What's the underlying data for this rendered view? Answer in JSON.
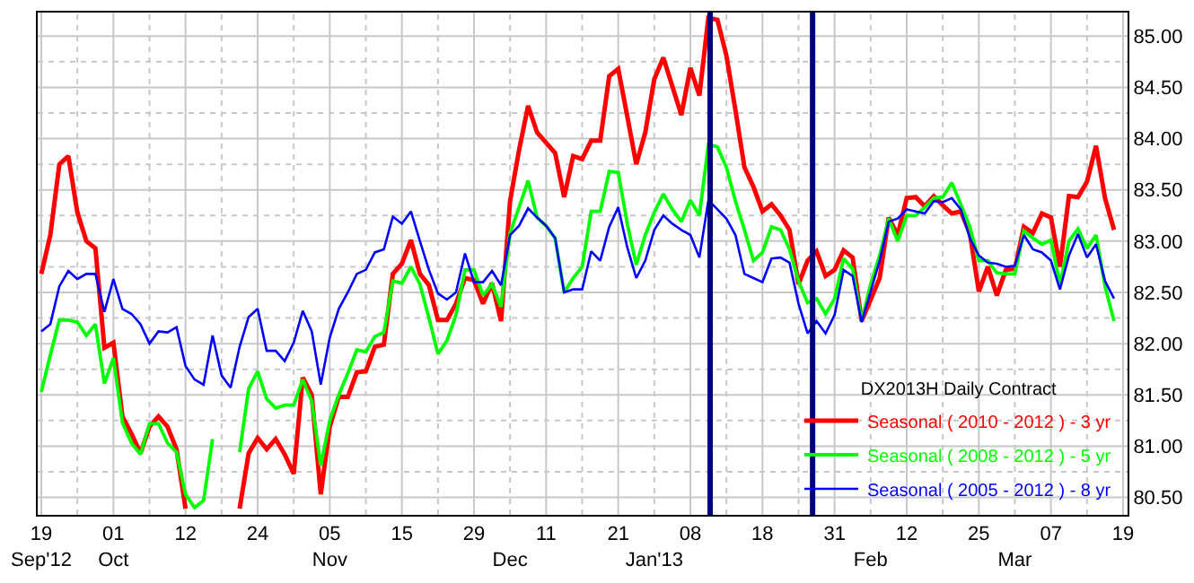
{
  "chart_data": {
    "type": "line",
    "legend_title": "DX2013H Daily Contract",
    "legend": "bottom right",
    "grid": true,
    "line_style": "solid",
    "categories": [
      "19\nSep'12",
      null,
      null,
      null,
      null,
      null,
      null,
      null,
      "01\nOct",
      null,
      null,
      null,
      null,
      null,
      null,
      null,
      "12",
      null,
      null,
      null,
      null,
      null,
      null,
      null,
      "24",
      null,
      null,
      null,
      null,
      null,
      null,
      null,
      "05\nNov",
      null,
      null,
      null,
      null,
      null,
      null,
      null,
      "15",
      null,
      null,
      null,
      null,
      null,
      null,
      null,
      "29",
      null,
      null,
      null,
      "\nDec",
      null,
      null,
      null,
      "11",
      null,
      null,
      null,
      null,
      null,
      null,
      null,
      "21",
      null,
      null,
      null,
      "\nJan'13",
      null,
      null,
      null,
      "08",
      null,
      null,
      null,
      null,
      null,
      null,
      null,
      "18",
      null,
      null,
      null,
      null,
      null,
      null,
      null,
      "31",
      null,
      null,
      null,
      "\nFeb",
      null,
      null,
      null,
      "12",
      null,
      null,
      null,
      null,
      null,
      null,
      null,
      "25",
      null,
      null,
      null,
      "\nMar",
      null,
      null,
      null,
      "07",
      null,
      null,
      null,
      null,
      null,
      null,
      null,
      "19"
    ],
    "ylim": [
      80.33,
      85.23
    ],
    "yticks": [
      {
        "value": 80.5,
        "label": "80.50"
      },
      {
        "value": 80.75,
        "label": null
      },
      {
        "value": 81,
        "label": "81.00"
      },
      {
        "value": 81.25,
        "label": null
      },
      {
        "value": 81.5,
        "label": "81.50"
      },
      {
        "value": 81.75,
        "label": null
      },
      {
        "value": 82,
        "label": "82.00"
      },
      {
        "value": 82.25,
        "label": null
      },
      {
        "value": 82.5,
        "label": "82.50"
      },
      {
        "value": 82.75,
        "label": null
      },
      {
        "value": 83,
        "label": "83.00"
      },
      {
        "value": 83.25,
        "label": null
      },
      {
        "value": 83.5,
        "label": "83.50"
      },
      {
        "value": 83.75,
        "label": null
      },
      {
        "value": 84,
        "label": "84.00"
      },
      {
        "value": 84.25,
        "label": null
      },
      {
        "value": 84.5,
        "label": "84.50"
      },
      {
        "value": 84.75,
        "label": null
      },
      {
        "value": 85,
        "label": "85.00"
      }
    ],
    "series": [
      {
        "name": "Seasonal ( 2010 - 2012 ) - 3 yr",
        "color": "#ff0000",
        "values": [
          82.68,
          83.06,
          83.75,
          83.83,
          83.28,
          83.0,
          82.93,
          81.96,
          82.01,
          81.29,
          81.12,
          80.93,
          81.19,
          81.29,
          81.19,
          80.97,
          80.39,
          null,
          null,
          null,
          null,
          null,
          80.39,
          80.93,
          81.08,
          80.97,
          81.07,
          80.92,
          80.73,
          81.67,
          81.5,
          80.53,
          81.19,
          81.48,
          81.48,
          81.72,
          81.73,
          81.97,
          81.99,
          82.68,
          82.78,
          83.01,
          82.68,
          82.57,
          82.23,
          82.23,
          82.39,
          82.64,
          82.62,
          82.39,
          82.59,
          82.22,
          83.39,
          83.89,
          84.32,
          84.06,
          83.96,
          83.86,
          83.43,
          83.83,
          83.8,
          83.98,
          83.98,
          84.61,
          84.68,
          84.22,
          83.75,
          84.06,
          84.58,
          84.79,
          84.51,
          84.23,
          84.69,
          84.42,
          85.18,
          85.16,
          84.81,
          84.28,
          83.72,
          83.53,
          83.29,
          83.36,
          83.25,
          83.11,
          82.58,
          82.81,
          82.9,
          82.66,
          82.72,
          82.91,
          82.84,
          82.22,
          82.43,
          82.64,
          83.23,
          83.06,
          83.42,
          83.43,
          83.34,
          83.44,
          83.35,
          83.27,
          83.29,
          83.08,
          82.51,
          82.75,
          82.47,
          82.72,
          82.73,
          83.14,
          83.08,
          83.27,
          83.23,
          82.75,
          83.44,
          83.43,
          83.58,
          83.93,
          83.42,
          83.11,
          null
        ]
      },
      {
        "name": "Seasonal ( 2008 - 2012 ) - 5 yr",
        "color": "#00ff00",
        "values": [
          81.53,
          81.89,
          82.23,
          82.23,
          82.21,
          82.08,
          82.19,
          81.61,
          81.86,
          81.23,
          81.03,
          80.92,
          81.22,
          81.22,
          81.03,
          80.94,
          80.53,
          80.4,
          80.47,
          81.07,
          null,
          null,
          80.94,
          81.56,
          81.73,
          81.46,
          81.37,
          81.4,
          81.4,
          81.65,
          81.44,
          80.81,
          81.25,
          81.5,
          81.71,
          81.94,
          81.92,
          82.07,
          82.11,
          82.61,
          82.59,
          82.75,
          82.58,
          82.25,
          81.9,
          82.03,
          82.28,
          82.72,
          82.72,
          82.47,
          82.58,
          82.36,
          83.08,
          83.33,
          83.59,
          83.23,
          83.15,
          83.03,
          82.5,
          82.64,
          82.75,
          83.29,
          83.29,
          83.68,
          83.67,
          83.17,
          82.77,
          83.06,
          83.28,
          83.46,
          83.31,
          83.19,
          83.4,
          83.25,
          83.94,
          83.92,
          83.72,
          83.39,
          83.11,
          82.81,
          82.89,
          83.14,
          83.11,
          82.92,
          82.61,
          82.4,
          82.44,
          82.29,
          82.44,
          82.83,
          82.73,
          82.22,
          82.58,
          82.86,
          83.22,
          83.0,
          83.25,
          83.25,
          83.33,
          83.42,
          83.43,
          83.57,
          83.36,
          83.14,
          82.81,
          82.81,
          82.69,
          82.68,
          82.68,
          83.1,
          83.03,
          82.97,
          83.01,
          82.58,
          83.0,
          83.12,
          82.93,
          83.06,
          82.56,
          82.22,
          null
        ]
      },
      {
        "name": "Seasonal ( 2005 - 2012 ) - 8 yr",
        "color": "#0000ff",
        "values": [
          82.12,
          82.19,
          82.56,
          82.71,
          82.63,
          82.68,
          82.68,
          82.31,
          82.63,
          82.34,
          82.29,
          82.19,
          82.0,
          82.12,
          82.11,
          82.16,
          81.78,
          81.65,
          81.6,
          82.08,
          81.69,
          81.57,
          81.97,
          82.26,
          82.34,
          81.93,
          81.93,
          81.83,
          82.01,
          82.32,
          82.12,
          81.6,
          82.06,
          82.34,
          82.5,
          82.68,
          82.72,
          82.89,
          82.92,
          83.24,
          83.17,
          83.29,
          83.0,
          82.72,
          82.49,
          82.43,
          82.5,
          82.88,
          82.6,
          82.6,
          82.71,
          82.57,
          83.06,
          83.15,
          83.32,
          83.23,
          83.15,
          83.03,
          82.5,
          82.53,
          82.53,
          82.9,
          82.81,
          83.14,
          83.33,
          82.94,
          82.64,
          82.81,
          83.11,
          83.25,
          83.17,
          83.11,
          83.06,
          82.84,
          83.4,
          83.31,
          83.22,
          83.06,
          82.68,
          82.64,
          82.6,
          82.83,
          82.84,
          82.79,
          82.39,
          82.1,
          82.22,
          82.1,
          82.28,
          82.72,
          82.66,
          82.21,
          82.51,
          82.81,
          83.19,
          83.22,
          83.31,
          83.29,
          83.27,
          83.39,
          83.38,
          83.42,
          83.31,
          83.03,
          82.86,
          82.79,
          82.78,
          82.75,
          82.76,
          83.06,
          82.92,
          82.89,
          82.81,
          82.53,
          82.86,
          83.07,
          82.84,
          82.97,
          82.61,
          82.44,
          null
        ]
      }
    ]
  }
}
